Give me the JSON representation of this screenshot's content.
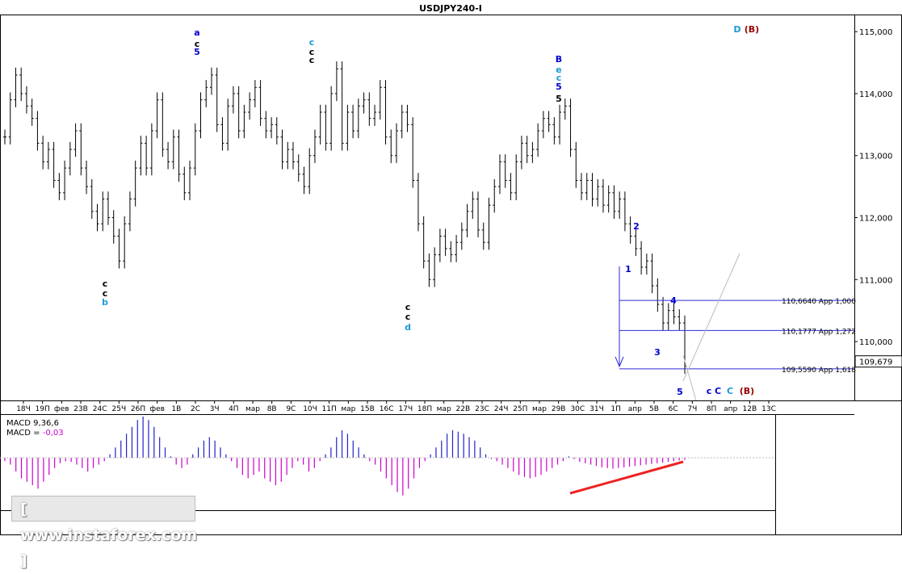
{
  "window": {
    "title": "USDJPY240-I"
  },
  "watermark": "[ www.instaforex.com ]",
  "colors": {
    "background": "#ffffff",
    "candles": "#000000",
    "wave_black": "#000000",
    "wave_blue": "#0000cc",
    "wave_teal": "#1a9ad6",
    "wave_dark_red": "#990000",
    "wave_magenta": "#cc00cc",
    "fib_lines": "#2b2bd9",
    "macd_positive": "#2222cc",
    "macd_negative": "#cc00cc",
    "trendline_red": "#ee2222",
    "projection_line": "#bbbbbb"
  },
  "chart_data": [
    {
      "type": "line",
      "title": "USDJPY240-I",
      "price_axis": {
        "labels": [
          "115,000",
          "114,000",
          "113,000",
          "112,000",
          "111,000",
          "110,000"
        ],
        "ylim": [
          109.05,
          115.25
        ],
        "current_price": "109,679"
      },
      "time_axis": {
        "ticks": [
          "18Ч",
          "19П",
          "фев",
          "23В",
          "24С",
          "25Ч",
          "26П",
          "фев",
          "1В",
          "2С",
          "3Ч",
          "4П",
          "мар",
          "8В",
          "9С",
          "10Ч",
          "11П",
          "мар",
          "15В",
          "16С",
          "17Ч",
          "18П",
          "мар",
          "22В",
          "23С",
          "24Ч",
          "25П",
          "мар",
          "29В",
          "30С",
          "31Ч",
          "1П",
          "апр",
          "5В",
          "6С",
          "7Ч",
          "8П",
          "апр",
          "12В",
          "13С"
        ]
      },
      "price_series": [
        {
          "x": 0,
          "y": 113.3
        },
        {
          "x": 1,
          "y": 113.9
        },
        {
          "x": 2,
          "y": 114.3
        },
        {
          "x": 3,
          "y": 114.0
        },
        {
          "x": 4,
          "y": 113.8
        },
        {
          "x": 5,
          "y": 113.6
        },
        {
          "x": 6,
          "y": 113.2
        },
        {
          "x": 7,
          "y": 112.9
        },
        {
          "x": 8,
          "y": 113.1
        },
        {
          "x": 9,
          "y": 112.6
        },
        {
          "x": 10,
          "y": 112.4
        },
        {
          "x": 11,
          "y": 112.8
        },
        {
          "x": 12,
          "y": 113.1
        },
        {
          "x": 13,
          "y": 113.4
        },
        {
          "x": 14,
          "y": 112.8
        },
        {
          "x": 15,
          "y": 112.5
        },
        {
          "x": 16,
          "y": 112.1
        },
        {
          "x": 17,
          "y": 111.9
        },
        {
          "x": 18,
          "y": 112.3
        },
        {
          "x": 19,
          "y": 112.0
        },
        {
          "x": 20,
          "y": 111.7
        },
        {
          "x": 21,
          "y": 111.3
        },
        {
          "x": 22,
          "y": 111.9
        },
        {
          "x": 23,
          "y": 112.3
        },
        {
          "x": 24,
          "y": 112.8
        },
        {
          "x": 25,
          "y": 113.2
        },
        {
          "x": 26,
          "y": 112.8
        },
        {
          "x": 27,
          "y": 113.4
        },
        {
          "x": 28,
          "y": 113.9
        },
        {
          "x": 29,
          "y": 113.1
        },
        {
          "x": 30,
          "y": 112.9
        },
        {
          "x": 31,
          "y": 113.3
        },
        {
          "x": 32,
          "y": 112.7
        },
        {
          "x": 33,
          "y": 112.4
        },
        {
          "x": 34,
          "y": 112.8
        },
        {
          "x": 35,
          "y": 113.4
        },
        {
          "x": 36,
          "y": 113.9
        },
        {
          "x": 37,
          "y": 114.1
        },
        {
          "x": 38,
          "y": 114.3
        },
        {
          "x": 39,
          "y": 113.5
        },
        {
          "x": 40,
          "y": 113.2
        },
        {
          "x": 41,
          "y": 113.8
        },
        {
          "x": 42,
          "y": 114.0
        },
        {
          "x": 43,
          "y": 113.4
        },
        {
          "x": 44,
          "y": 113.7
        },
        {
          "x": 45,
          "y": 113.9
        },
        {
          "x": 46,
          "y": 114.1
        },
        {
          "x": 47,
          "y": 113.6
        },
        {
          "x": 48,
          "y": 113.4
        },
        {
          "x": 49,
          "y": 113.5
        },
        {
          "x": 50,
          "y": 113.3
        },
        {
          "x": 51,
          "y": 112.9
        },
        {
          "x": 52,
          "y": 113.1
        },
        {
          "x": 53,
          "y": 112.9
        },
        {
          "x": 54,
          "y": 112.7
        },
        {
          "x": 55,
          "y": 112.5
        },
        {
          "x": 56,
          "y": 113.0
        },
        {
          "x": 57,
          "y": 113.3
        },
        {
          "x": 58,
          "y": 113.7
        },
        {
          "x": 59,
          "y": 113.2
        },
        {
          "x": 60,
          "y": 114.0
        },
        {
          "x": 61,
          "y": 114.4
        },
        {
          "x": 62,
          "y": 113.2
        },
        {
          "x": 63,
          "y": 113.7
        },
        {
          "x": 64,
          "y": 113.4
        },
        {
          "x": 65,
          "y": 113.8
        },
        {
          "x": 66,
          "y": 113.9
        },
        {
          "x": 67,
          "y": 113.6
        },
        {
          "x": 68,
          "y": 113.7
        },
        {
          "x": 69,
          "y": 114.1
        },
        {
          "x": 70,
          "y": 113.3
        },
        {
          "x": 71,
          "y": 113.0
        },
        {
          "x": 72,
          "y": 113.4
        },
        {
          "x": 73,
          "y": 113.7
        },
        {
          "x": 74,
          "y": 113.5
        },
        {
          "x": 75,
          "y": 112.6
        },
        {
          "x": 76,
          "y": 111.9
        },
        {
          "x": 77,
          "y": 111.3
        },
        {
          "x": 78,
          "y": 111.0
        },
        {
          "x": 79,
          "y": 111.4
        },
        {
          "x": 80,
          "y": 111.7
        },
        {
          "x": 81,
          "y": 111.5
        },
        {
          "x": 82,
          "y": 111.4
        },
        {
          "x": 83,
          "y": 111.6
        },
        {
          "x": 84,
          "y": 111.8
        },
        {
          "x": 85,
          "y": 112.1
        },
        {
          "x": 86,
          "y": 112.3
        },
        {
          "x": 87,
          "y": 111.8
        },
        {
          "x": 88,
          "y": 111.6
        },
        {
          "x": 89,
          "y": 112.2
        },
        {
          "x": 90,
          "y": 112.5
        },
        {
          "x": 91,
          "y": 112.9
        },
        {
          "x": 92,
          "y": 112.6
        },
        {
          "x": 93,
          "y": 112.4
        },
        {
          "x": 94,
          "y": 112.9
        },
        {
          "x": 95,
          "y": 113.2
        },
        {
          "x": 96,
          "y": 113.0
        },
        {
          "x": 97,
          "y": 113.1
        },
        {
          "x": 98,
          "y": 113.4
        },
        {
          "x": 99,
          "y": 113.6
        },
        {
          "x": 100,
          "y": 113.5
        },
        {
          "x": 101,
          "y": 113.3
        },
        {
          "x": 102,
          "y": 113.7
        },
        {
          "x": 103,
          "y": 113.8
        },
        {
          "x": 104,
          "y": 113.1
        },
        {
          "x": 105,
          "y": 112.6
        },
        {
          "x": 106,
          "y": 112.4
        },
        {
          "x": 107,
          "y": 112.6
        },
        {
          "x": 108,
          "y": 112.3
        },
        {
          "x": 109,
          "y": 112.5
        },
        {
          "x": 110,
          "y": 112.2
        },
        {
          "x": 111,
          "y": 112.4
        },
        {
          "x": 112,
          "y": 112.1
        },
        {
          "x": 113,
          "y": 112.3
        },
        {
          "x": 114,
          "y": 111.9
        },
        {
          "x": 115,
          "y": 111.7
        },
        {
          "x": 116,
          "y": 111.5
        },
        {
          "x": 117,
          "y": 111.2
        },
        {
          "x": 118,
          "y": 111.3
        },
        {
          "x": 119,
          "y": 110.9
        },
        {
          "x": 120,
          "y": 110.6
        },
        {
          "x": 121,
          "y": 110.3
        },
        {
          "x": 122,
          "y": 110.5
        },
        {
          "x": 123,
          "y": 110.4
        },
        {
          "x": 124,
          "y": 110.3
        },
        {
          "x": 125,
          "y": 109.6
        }
      ],
      "fib_levels": [
        {
          "price": 110.664,
          "label": "110,6640 App 1,000"
        },
        {
          "price": 110.1777,
          "label": "110,1777 App 1,272"
        },
        {
          "price": 109.559,
          "label": "109,5590 App 1,618"
        }
      ],
      "wave_labels": [
        {
          "text": "D",
          "color": "teal"
        },
        {
          "text": "(B)",
          "color": "dark_red"
        },
        {
          "text": "B",
          "color": "blue"
        },
        {
          "text": "e",
          "color": "teal"
        },
        {
          "text": "c",
          "color": "teal"
        },
        {
          "text": "5",
          "color": "blue"
        },
        {
          "text": "5",
          "color": "black"
        },
        {
          "text": "a",
          "color": "blue"
        },
        {
          "text": "c",
          "color": "black"
        },
        {
          "text": "5",
          "color": "blue"
        },
        {
          "text": "c",
          "color": "teal"
        },
        {
          "text": "c",
          "color": "black"
        },
        {
          "text": "c",
          "color": "black"
        },
        {
          "text": "c",
          "color": "black"
        },
        {
          "text": "c",
          "color": "black"
        },
        {
          "text": "b",
          "color": "teal"
        },
        {
          "text": "c",
          "color": "black"
        },
        {
          "text": "c",
          "color": "black"
        },
        {
          "text": "d",
          "color": "teal"
        },
        {
          "text": "c",
          "color": "blue"
        },
        {
          "text": "C",
          "color": "blue"
        },
        {
          "text": "C",
          "color": "teal"
        },
        {
          "text": "(B)",
          "color": "dark_red"
        },
        {
          "text": "1",
          "color": "blue"
        },
        {
          "text": "2",
          "color": "blue"
        },
        {
          "text": "3",
          "color": "blue"
        },
        {
          "text": "4",
          "color": "blue"
        },
        {
          "text": "5",
          "color": "blue"
        }
      ]
    },
    {
      "type": "bar",
      "title": "MACD 9,36,6",
      "subtitle_label": "MACD = ",
      "subtitle_value": "-0,03",
      "histogram": [
        -0.05,
        -0.1,
        -0.2,
        -0.3,
        -0.35,
        -0.4,
        -0.45,
        -0.35,
        -0.25,
        -0.15,
        -0.08,
        -0.05,
        -0.06,
        -0.1,
        -0.15,
        -0.2,
        -0.15,
        -0.1,
        -0.05,
        0.05,
        0.15,
        0.25,
        0.35,
        0.45,
        0.55,
        0.6,
        0.55,
        0.45,
        0.3,
        0.15,
        0.02,
        -0.1,
        -0.15,
        -0.1,
        0.05,
        0.15,
        0.25,
        0.3,
        0.25,
        0.15,
        0.05,
        -0.05,
        -0.15,
        -0.25,
        -0.3,
        -0.25,
        -0.2,
        -0.3,
        -0.35,
        -0.4,
        -0.35,
        -0.25,
        -0.15,
        -0.05,
        -0.1,
        -0.2,
        -0.15,
        -0.05,
        0.05,
        0.15,
        0.3,
        0.4,
        0.35,
        0.25,
        0.15,
        0.05,
        -0.05,
        -0.1,
        -0.2,
        -0.3,
        -0.4,
        -0.5,
        -0.55,
        -0.45,
        -0.3,
        -0.15,
        -0.05,
        0.05,
        0.15,
        0.25,
        0.35,
        0.4,
        0.38,
        0.35,
        0.3,
        0.25,
        0.15,
        0.05,
        -0.02,
        -0.05,
        -0.1,
        -0.15,
        -0.2,
        -0.25,
        -0.28,
        -0.3,
        -0.28,
        -0.25,
        -0.2,
        -0.15,
        -0.1,
        -0.05,
        0.02,
        -0.02,
        -0.06,
        -0.08,
        -0.1,
        -0.12,
        -0.14,
        -0.15,
        -0.16,
        -0.15,
        -0.14,
        -0.13,
        -0.12,
        -0.11,
        -0.1,
        -0.09,
        -0.08,
        -0.07,
        -0.06,
        -0.05,
        -0.04,
        -0.03
      ]
    }
  ]
}
